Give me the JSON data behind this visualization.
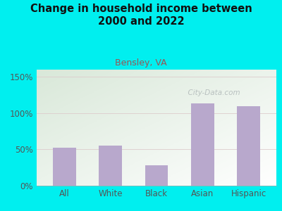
{
  "title": "Change in household income between\n2000 and 2022",
  "subtitle": "Bensley, VA",
  "categories": [
    "All",
    "White",
    "Black",
    "Asian",
    "Hispanic"
  ],
  "values": [
    52,
    55,
    28,
    113,
    110
  ],
  "bar_color": "#b8a8cc",
  "background_color": "#00EFEF",
  "plot_bg_color_topleft": "#d8ead8",
  "plot_bg_color_bottomright": "#f8fbf8",
  "title_color": "#111111",
  "subtitle_color": "#995555",
  "axis_label_color": "#555555",
  "yticks": [
    0,
    50,
    100,
    150
  ],
  "ytick_labels": [
    "0%",
    "50%",
    "100%",
    "150%"
  ],
  "ylim": [
    0,
    160
  ],
  "watermark": "  City-Data.com",
  "watermark_color": "#b0b8b8",
  "gridline_color": "#ddcccc",
  "gridline_100_color": "#ddbbbb"
}
